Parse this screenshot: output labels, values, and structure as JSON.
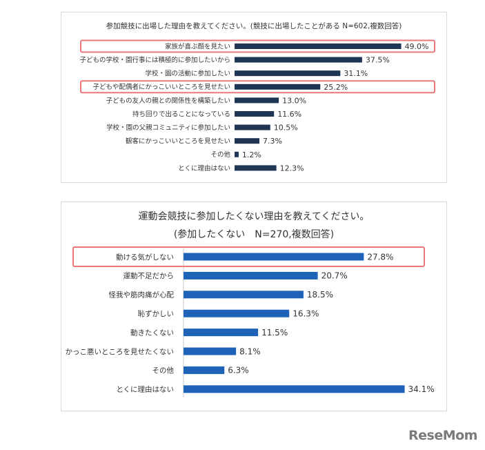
{
  "chart_data": [
    {
      "type": "bar",
      "orientation": "horizontal",
      "title": "参加競技に出場した理由を教えてください。(競技に出場したことがある N=602,複数回答)",
      "categories": [
        "家族が喜ぶ顔を見たい",
        "子どもの学校・園行事には積極的に参加したいから",
        "学校・園の活動に参加したい",
        "子どもや配偶者にかっこいいところを見せたい",
        "子どもの友人の親との関係性を構築したい",
        "持ち回りで出ることになっている",
        "学校・園の父親コミュニティに参加したい",
        "観客にかっこいいところを見せたい",
        "その他",
        "とくに理由はない"
      ],
      "values": [
        49.0,
        37.5,
        31.1,
        25.2,
        13.0,
        11.6,
        10.5,
        7.3,
        1.2,
        12.3
      ],
      "value_labels": [
        "49.0%",
        "37.5%",
        "31.1%",
        "25.2%",
        "13.0%",
        "11.6%",
        "10.5%",
        "7.3%",
        "1.2%",
        "12.3%"
      ],
      "highlighted": [
        0,
        3
      ],
      "bar_color": "#1f3554",
      "highlight_color": "#e8787a"
    },
    {
      "type": "bar",
      "orientation": "horizontal",
      "title": "運動会競技に参加したくない理由を教えてください。",
      "subtitle": "(参加したくない　N=270,複数回答)",
      "categories": [
        "動ける気がしない",
        "運動不足だから",
        "怪我や筋肉痛が心配",
        "恥ずかしい",
        "動きたくない",
        "かっこ悪いところを見せたくない",
        "その他",
        "とくに理由はない"
      ],
      "values": [
        27.8,
        20.7,
        18.5,
        16.3,
        11.5,
        8.1,
        6.3,
        34.1
      ],
      "value_labels": [
        "27.8%",
        "20.7%",
        "18.5%",
        "16.3%",
        "11.5%",
        "8.1%",
        "6.3%",
        "34.1%"
      ],
      "highlighted": [
        0
      ],
      "bar_color": "#1f63b8",
      "highlight_color": "#e8787a",
      "axis_color": "#c8c8c8"
    }
  ],
  "logo": {
    "text": "ReseMom"
  }
}
